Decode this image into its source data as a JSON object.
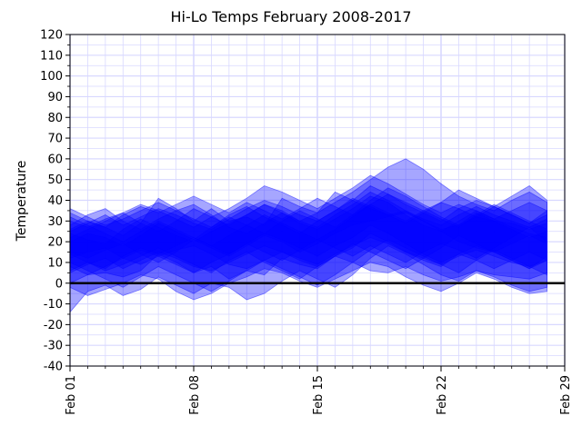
{
  "chart_data": {
    "type": "area",
    "title": "Hi-Lo Temps February 2008-2017",
    "xlabel": "",
    "ylabel": "Temperature",
    "ylim": [
      -40,
      120
    ],
    "y_ticks": [
      -40,
      -30,
      -20,
      -10,
      0,
      10,
      20,
      30,
      40,
      50,
      60,
      70,
      80,
      90,
      100,
      110,
      120
    ],
    "x_range_days": [
      1,
      29
    ],
    "x_ticks": [
      {
        "day": 1,
        "label": "Feb 01"
      },
      {
        "day": 8,
        "label": "Feb 08"
      },
      {
        "day": 15,
        "label": "Feb 15"
      },
      {
        "day": 22,
        "label": "Feb 22"
      },
      {
        "day": 29,
        "label": "Feb 29"
      }
    ],
    "grid": true,
    "reference_line": {
      "y": 0,
      "color": "#000000"
    },
    "fill_color": "#0000ff",
    "fill_opacity": 0.35,
    "series": [
      {
        "high": [
          34,
          30,
          27,
          23,
          29,
          41,
          36,
          30,
          36,
          30,
          32,
          28,
          41,
          37,
          34,
          44,
          40,
          36,
          33,
          35,
          30,
          26,
          28,
          32,
          30,
          29,
          26,
          29
        ],
        "low": [
          8,
          4,
          5,
          3,
          6,
          14,
          10,
          5,
          8,
          2,
          6,
          4,
          12,
          9,
          7,
          13,
          10,
          6,
          5,
          8,
          4,
          1,
          3,
          6,
          4,
          3,
          2,
          5
        ]
      },
      {
        "high": [
          24,
          21,
          19,
          26,
          31,
          27,
          23,
          20,
          25,
          29,
          33,
          38,
          34,
          29,
          26,
          31,
          36,
          42,
          39,
          33,
          28,
          25,
          30,
          35,
          31,
          27,
          24,
          22
        ],
        "low": [
          -2,
          -6,
          -3,
          0,
          4,
          2,
          -4,
          -8,
          -5,
          0,
          3,
          7,
          5,
          1,
          -2,
          2,
          6,
          10,
          8,
          3,
          -1,
          -4,
          0,
          5,
          2,
          -2,
          -5,
          -4
        ]
      },
      {
        "high": [
          28,
          33,
          36,
          30,
          26,
          31,
          35,
          38,
          33,
          27,
          24,
          29,
          34,
          30,
          27,
          33,
          38,
          44,
          40,
          35,
          31,
          28,
          33,
          37,
          33,
          30,
          27,
          31
        ],
        "low": [
          12,
          15,
          17,
          12,
          9,
          13,
          16,
          18,
          14,
          9,
          7,
          11,
          15,
          12,
          9,
          14,
          18,
          22,
          19,
          15,
          12,
          9,
          13,
          16,
          13,
          10,
          8,
          11
        ]
      },
      {
        "high": [
          20,
          24,
          22,
          18,
          23,
          29,
          25,
          21,
          27,
          32,
          28,
          24,
          30,
          35,
          31,
          27,
          33,
          40,
          46,
          42,
          37,
          32,
          28,
          34,
          30,
          26,
          22,
          25
        ],
        "low": [
          -14,
          -4,
          -1,
          -6,
          -3,
          3,
          -1,
          -5,
          0,
          -2,
          -8,
          -5,
          1,
          6,
          2,
          -2,
          4,
          12,
          18,
          14,
          9,
          4,
          1,
          6,
          3,
          -1,
          -4,
          -2
        ]
      },
      {
        "high": [
          30,
          27,
          31,
          34,
          29,
          25,
          30,
          36,
          32,
          28,
          33,
          38,
          35,
          30,
          34,
          39,
          44,
          50,
          56,
          60,
          55,
          48,
          42,
          38,
          35,
          40,
          44,
          39
        ],
        "low": [
          15,
          12,
          16,
          19,
          14,
          10,
          15,
          21,
          17,
          13,
          18,
          23,
          20,
          15,
          19,
          24,
          28,
          30,
          32,
          34,
          30,
          25,
          20,
          17,
          15,
          19,
          23,
          19
        ]
      },
      {
        "high": [
          25,
          29,
          33,
          28,
          32,
          36,
          33,
          29,
          26,
          31,
          36,
          40,
          37,
          33,
          30,
          35,
          40,
          47,
          43,
          38,
          34,
          30,
          36,
          40,
          37,
          33,
          29,
          33
        ],
        "low": [
          5,
          9,
          12,
          7,
          11,
          15,
          12,
          8,
          6,
          10,
          14,
          18,
          15,
          11,
          8,
          13,
          17,
          24,
          20,
          15,
          11,
          8,
          14,
          18,
          15,
          11,
          7,
          11
        ]
      },
      {
        "high": [
          22,
          26,
          30,
          34,
          38,
          35,
          31,
          27,
          32,
          36,
          41,
          47,
          44,
          40,
          36,
          41,
          46,
          52,
          48,
          43,
          38,
          34,
          38,
          35,
          31,
          35,
          39,
          35
        ],
        "low": [
          0,
          4,
          8,
          12,
          16,
          13,
          9,
          5,
          10,
          14,
          19,
          24,
          21,
          17,
          13,
          18,
          22,
          28,
          24,
          19,
          14,
          10,
          14,
          11,
          7,
          11,
          15,
          11
        ]
      },
      {
        "high": [
          32,
          28,
          24,
          20,
          25,
          30,
          26,
          22,
          18,
          23,
          28,
          33,
          29,
          25,
          21,
          26,
          32,
          38,
          43,
          39,
          35,
          31,
          27,
          33,
          38,
          34,
          30,
          26
        ],
        "low": [
          10,
          6,
          2,
          -2,
          3,
          8,
          4,
          0,
          -4,
          1,
          6,
          11,
          7,
          3,
          -1,
          4,
          10,
          16,
          21,
          17,
          13,
          9,
          5,
          11,
          16,
          12,
          8,
          4
        ]
      },
      {
        "high": [
          26,
          30,
          27,
          33,
          37,
          34,
          38,
          42,
          38,
          34,
          39,
          35,
          31,
          36,
          41,
          37,
          33,
          38,
          34,
          30,
          35,
          39,
          36,
          32,
          37,
          42,
          47,
          40
        ],
        "low": [
          6,
          10,
          7,
          13,
          17,
          14,
          18,
          22,
          18,
          14,
          19,
          15,
          11,
          16,
          21,
          17,
          13,
          18,
          14,
          10,
          15,
          19,
          16,
          12,
          17,
          22,
          27,
          20
        ]
      },
      {
        "high": [
          36,
          32,
          28,
          31,
          35,
          39,
          35,
          31,
          27,
          33,
          37,
          32,
          28,
          24,
          30,
          35,
          41,
          37,
          33,
          29,
          34,
          39,
          45,
          41,
          37,
          33,
          29,
          35
        ],
        "low": [
          14,
          10,
          6,
          9,
          13,
          17,
          13,
          9,
          5,
          11,
          15,
          10,
          6,
          2,
          8,
          13,
          19,
          15,
          11,
          7,
          12,
          17,
          23,
          19,
          15,
          11,
          7,
          13
        ]
      }
    ]
  }
}
